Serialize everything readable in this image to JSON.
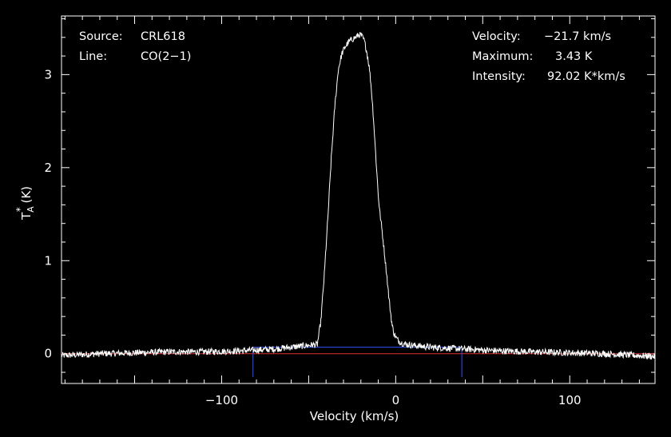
{
  "chart_data": {
    "type": "line",
    "title": "",
    "xlabel": "Velocity (km/s)",
    "ylabel": {
      "base": "T",
      "superscript": "*",
      "subscript": "A",
      "unit": " (K)"
    },
    "xlim": [
      -192,
      149
    ],
    "ylim": [
      -0.32,
      3.63
    ],
    "x_ticks": [
      -100,
      0,
      100
    ],
    "x_tick_labels": [
      "−100",
      "0",
      "100"
    ],
    "y_ticks": [
      0,
      1,
      2,
      3
    ],
    "y_tick_labels": [
      "0",
      "1",
      "2",
      "3"
    ],
    "grid": false,
    "legend": "none",
    "colors": {
      "background": "#000000",
      "axes": "#ffffff",
      "spectrum": "#ffffff",
      "zero_line": "#e03030",
      "window_marks": "#3050ff"
    },
    "series": [
      {
        "values_description_excluded": true,
        "x": [
          -192,
          -170,
          -150,
          -130,
          -110,
          -90,
          -70,
          -55,
          -45,
          -43,
          -41,
          -39,
          -37,
          -35,
          -33,
          -31,
          -29,
          -27,
          -25,
          -23,
          -21,
          -20,
          -19,
          -18,
          -17,
          -16,
          -15,
          -14,
          -13,
          -12,
          -11,
          -10,
          -9,
          -8,
          -7,
          -6,
          -5,
          -4,
          -3,
          -2,
          -1,
          0,
          1,
          3,
          6,
          10,
          20,
          40,
          60,
          80,
          100,
          120,
          149
        ],
        "y": [
          -0.02,
          0.0,
          0.01,
          0.02,
          0.02,
          0.03,
          0.05,
          0.08,
          0.1,
          0.35,
          0.85,
          1.45,
          2.1,
          2.65,
          3.05,
          3.22,
          3.3,
          3.35,
          3.38,
          3.4,
          3.43,
          3.42,
          3.4,
          3.36,
          3.28,
          3.18,
          3.05,
          2.85,
          2.6,
          2.3,
          2.0,
          1.7,
          1.5,
          1.35,
          1.18,
          1.0,
          0.82,
          0.62,
          0.45,
          0.3,
          0.22,
          0.18,
          0.15,
          0.12,
          0.1,
          0.09,
          0.07,
          0.05,
          0.03,
          0.02,
          0.01,
          0.0,
          -0.03
        ]
      }
    ],
    "zero_line_y": 0.0,
    "window_x": [
      -82,
      38
    ],
    "window_baseline_y": 0.07,
    "annotations_left": [
      {
        "label": "Source:",
        "value": "CRL618"
      },
      {
        "label": "Line:",
        "value": "CO(2−1)"
      }
    ],
    "annotations_right": [
      {
        "label": "Velocity:",
        "value": "−21.7 km/s"
      },
      {
        "label": "Maximum:",
        "value": "3.43 K"
      },
      {
        "label": "Intensity:",
        "value": "92.02 K*km/s"
      }
    ]
  }
}
